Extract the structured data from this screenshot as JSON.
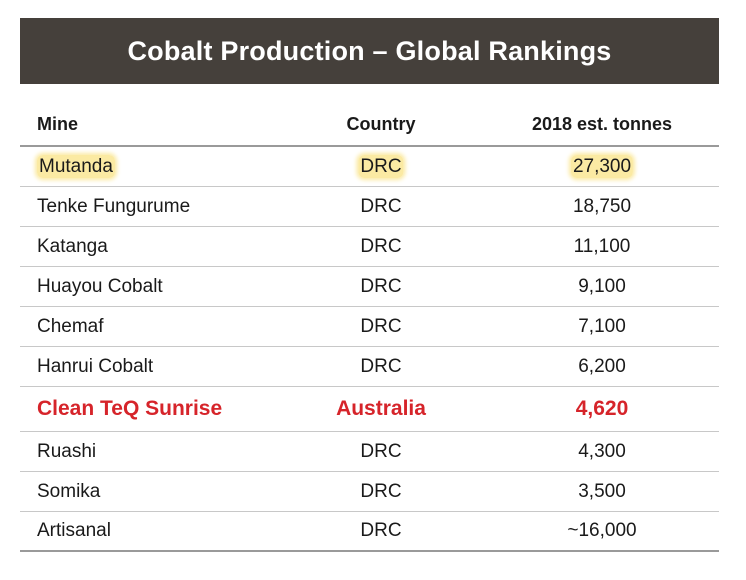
{
  "title": "Cobalt Production – Global Rankings",
  "columns": {
    "mine": "Mine",
    "country": "Country",
    "tonnes": "2018 est. tonnes"
  },
  "rows": [
    {
      "mine": "Mutanda",
      "country": "DRC",
      "tonnes": "27,300",
      "style": "highlight"
    },
    {
      "mine": "Tenke Fungurume",
      "country": "DRC",
      "tonnes": "18,750",
      "style": "normal"
    },
    {
      "mine": "Katanga",
      "country": "DRC",
      "tonnes": "11,100",
      "style": "normal"
    },
    {
      "mine": "Huayou Cobalt",
      "country": "DRC",
      "tonnes": "9,100",
      "style": "normal"
    },
    {
      "mine": "Chemaf",
      "country": "DRC",
      "tonnes": "7,100",
      "style": "normal"
    },
    {
      "mine": "Hanrui Cobalt",
      "country": "DRC",
      "tonnes": "6,200",
      "style": "normal"
    },
    {
      "mine": "Clean TeQ Sunrise",
      "country": "Australia",
      "tonnes": "4,620",
      "style": "emphasis"
    },
    {
      "mine": "Ruashi",
      "country": "DRC",
      "tonnes": "4,300",
      "style": "normal"
    },
    {
      "mine": "Somika",
      "country": "DRC",
      "tonnes": "3,500",
      "style": "normal"
    },
    {
      "mine": "Artisanal",
      "country": "DRC",
      "tonnes": "~16,000",
      "style": "normal"
    }
  ],
  "colors": {
    "header_bg": "#45403b",
    "highlight": "#fbeaa3",
    "emphasis": "#d6242a"
  }
}
